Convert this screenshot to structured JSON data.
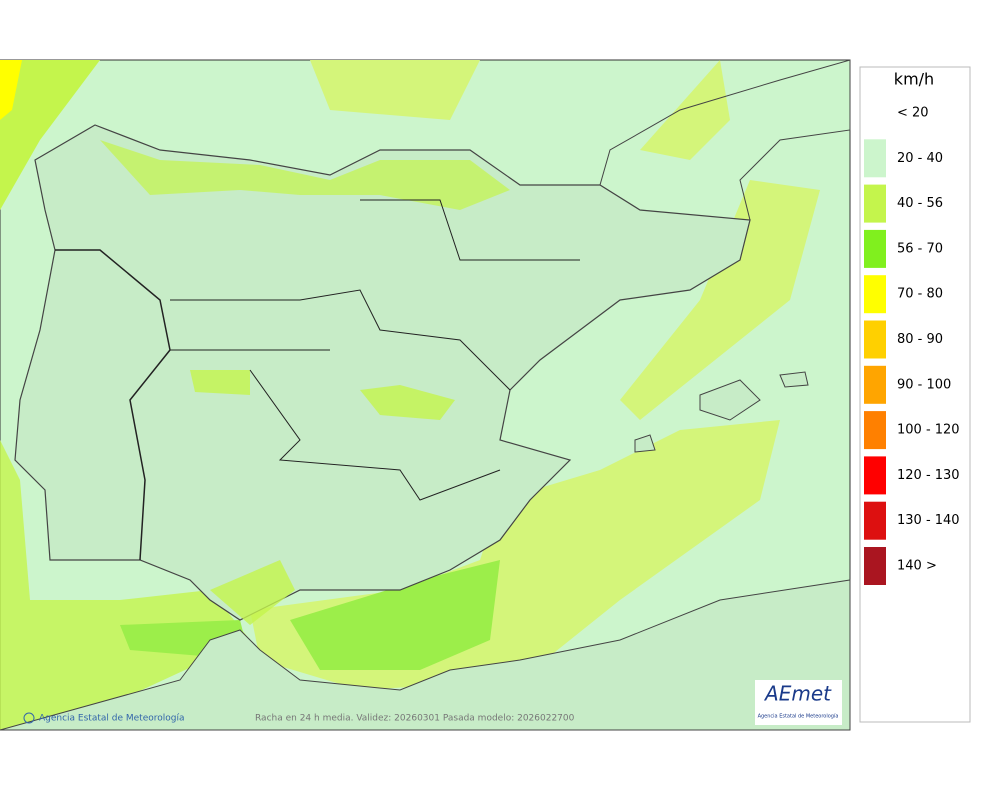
{
  "legend": {
    "title": "km/h",
    "items": [
      {
        "label": "< 20"
      },
      {
        "label": "20 - 40",
        "color": "#ccf5cc"
      },
      {
        "label": "40 - 56",
        "color": "#c4f54c"
      },
      {
        "label": "56 - 70",
        "color": "#80f01e"
      },
      {
        "label": "70 - 80",
        "color": "#ffff00"
      },
      {
        "label": "80 - 90",
        "color": "#ffd000"
      },
      {
        "label": "90 - 100",
        "color": "#ffa500"
      },
      {
        "label": "100 - 120",
        "color": "#ff8000"
      },
      {
        "label": "120 - 130",
        "color": "#ff0000"
      },
      {
        "label": "130 - 140",
        "color": "#dd1010"
      },
      {
        "label": "140 >",
        "color": "#aa1520"
      }
    ]
  },
  "footer": {
    "agency": "Agencia Estatal de Meteorología",
    "caption": "Racha en 24 h media. Validez: 20260301 Pasada modelo: 2026022700"
  },
  "logo": {
    "name": "AEmet",
    "subtitle": "Agencia Estatal de Meteorología"
  }
}
